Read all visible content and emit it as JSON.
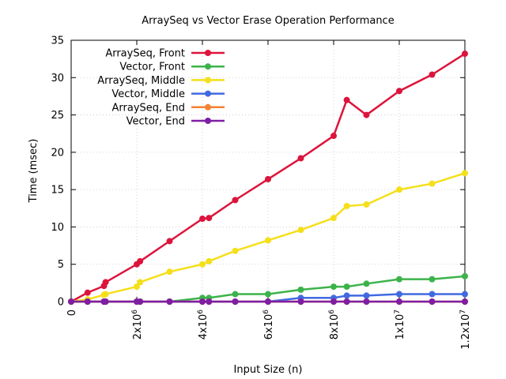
{
  "chart_data": {
    "type": "line",
    "title": "ArraySeq vs Vector Erase Operation Performance",
    "xlabel": "Input Size (n)",
    "ylabel": "Time (msec)",
    "xlim": [
      0,
      12000000
    ],
    "ylim": [
      0,
      35
    ],
    "x_ticks": [
      {
        "value": 0,
        "label": "0"
      },
      {
        "value": 2000000,
        "label": "2x10",
        "sup": "6"
      },
      {
        "value": 4000000,
        "label": "4x10",
        "sup": "6"
      },
      {
        "value": 6000000,
        "label": "6x10",
        "sup": "6"
      },
      {
        "value": 8000000,
        "label": "8x10",
        "sup": "6"
      },
      {
        "value": 10000000,
        "label": "1x10",
        "sup": "7"
      },
      {
        "value": 12000000,
        "label": "1.2x10",
        "sup": "7"
      }
    ],
    "y_ticks": [
      0,
      5,
      10,
      15,
      20,
      25,
      30,
      35
    ],
    "grid": true,
    "legend_position": "top-left",
    "series": [
      {
        "name": "ArraySeq, Front",
        "color": "#dc143c",
        "points": [
          [
            0,
            0
          ],
          [
            500000,
            1.2
          ],
          [
            1000000,
            2.1
          ],
          [
            1050000,
            2.6
          ],
          [
            2000000,
            5.0
          ],
          [
            2100000,
            5.4
          ],
          [
            3000000,
            8.1
          ],
          [
            4000000,
            11.1
          ],
          [
            4200000,
            11.2
          ],
          [
            5000000,
            13.6
          ],
          [
            6000000,
            16.4
          ],
          [
            7000000,
            19.2
          ],
          [
            8000000,
            22.2
          ],
          [
            8400000,
            27.0
          ],
          [
            9000000,
            25.0
          ],
          [
            10000000,
            28.2
          ],
          [
            11000000,
            30.4
          ],
          [
            12000000,
            33.2
          ]
        ]
      },
      {
        "name": "Vector, Front",
        "color": "#3cb34a",
        "points": [
          [
            0,
            0
          ],
          [
            500000,
            0
          ],
          [
            1000000,
            0
          ],
          [
            1050000,
            0
          ],
          [
            2000000,
            0
          ],
          [
            2100000,
            0
          ],
          [
            3000000,
            0
          ],
          [
            4000000,
            0.5
          ],
          [
            4200000,
            0.5
          ],
          [
            5000000,
            1.0
          ],
          [
            6000000,
            1.0
          ],
          [
            7000000,
            1.6
          ],
          [
            8000000,
            2.0
          ],
          [
            8400000,
            2.0
          ],
          [
            9000000,
            2.4
          ],
          [
            10000000,
            3.0
          ],
          [
            11000000,
            3.0
          ],
          [
            12000000,
            3.4
          ]
        ]
      },
      {
        "name": "ArraySeq, Middle",
        "color": "#f5df1a",
        "points": [
          [
            0,
            0
          ],
          [
            500000,
            0.3
          ],
          [
            1000000,
            0.9
          ],
          [
            1050000,
            1.0
          ],
          [
            2000000,
            2.0
          ],
          [
            2100000,
            2.6
          ],
          [
            3000000,
            4.0
          ],
          [
            4000000,
            5.0
          ],
          [
            4200000,
            5.4
          ],
          [
            5000000,
            6.8
          ],
          [
            6000000,
            8.2
          ],
          [
            7000000,
            9.6
          ],
          [
            8000000,
            11.2
          ],
          [
            8400000,
            12.8
          ],
          [
            9000000,
            13.0
          ],
          [
            10000000,
            15.0
          ],
          [
            11000000,
            15.8
          ],
          [
            12000000,
            17.2
          ]
        ]
      },
      {
        "name": "Vector, Middle",
        "color": "#4169e1",
        "points": [
          [
            0,
            0
          ],
          [
            500000,
            0
          ],
          [
            1000000,
            0
          ],
          [
            1050000,
            0
          ],
          [
            2000000,
            0
          ],
          [
            2100000,
            0
          ],
          [
            3000000,
            0
          ],
          [
            4000000,
            0
          ],
          [
            4200000,
            0
          ],
          [
            5000000,
            0
          ],
          [
            6000000,
            0
          ],
          [
            7000000,
            0.5
          ],
          [
            8000000,
            0.5
          ],
          [
            8400000,
            0.8
          ],
          [
            9000000,
            0.8
          ],
          [
            10000000,
            1.0
          ],
          [
            11000000,
            1.0
          ],
          [
            12000000,
            1.0
          ]
        ]
      },
      {
        "name": "ArraySeq, End",
        "color": "#f58231",
        "points": [
          [
            0,
            0
          ],
          [
            500000,
            0
          ],
          [
            1000000,
            0
          ],
          [
            1050000,
            0
          ],
          [
            2000000,
            0
          ],
          [
            2100000,
            0
          ],
          [
            3000000,
            0
          ],
          [
            4000000,
            0
          ],
          [
            4200000,
            0
          ],
          [
            5000000,
            0
          ],
          [
            6000000,
            0
          ],
          [
            7000000,
            0
          ],
          [
            8000000,
            0
          ],
          [
            8400000,
            0
          ],
          [
            9000000,
            0
          ],
          [
            10000000,
            0
          ],
          [
            11000000,
            0
          ],
          [
            12000000,
            0
          ]
        ]
      },
      {
        "name": "Vector, End",
        "color": "#7f1ea3",
        "points": [
          [
            0,
            0
          ],
          [
            500000,
            0
          ],
          [
            1000000,
            0
          ],
          [
            1050000,
            0
          ],
          [
            2000000,
            0
          ],
          [
            2100000,
            0
          ],
          [
            3000000,
            0
          ],
          [
            4000000,
            0
          ],
          [
            4200000,
            0
          ],
          [
            5000000,
            0
          ],
          [
            6000000,
            0
          ],
          [
            7000000,
            0
          ],
          [
            8000000,
            0
          ],
          [
            8400000,
            0
          ],
          [
            9000000,
            0
          ],
          [
            10000000,
            0
          ],
          [
            11000000,
            0
          ],
          [
            12000000,
            0
          ]
        ]
      }
    ]
  }
}
